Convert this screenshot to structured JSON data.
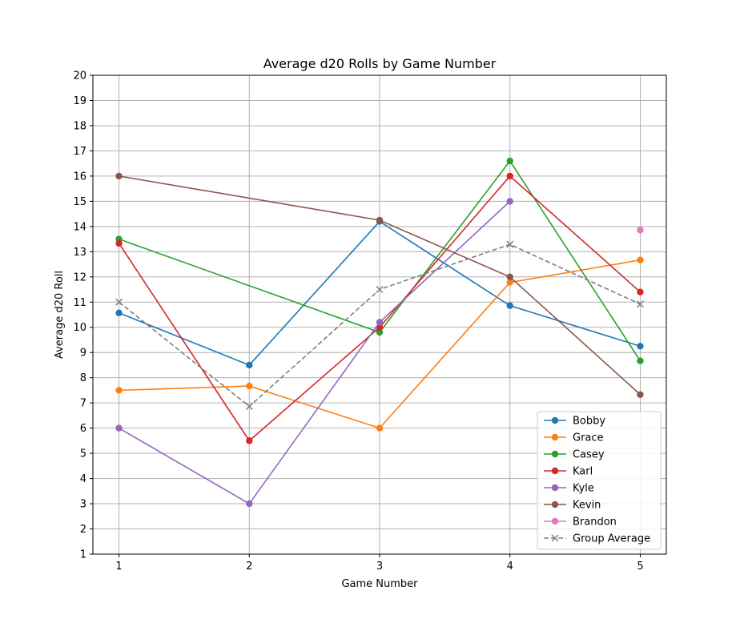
{
  "chart_data": {
    "type": "line",
    "title": "Average d20 Rolls by Game Number",
    "xlabel": "Game Number",
    "ylabel": "Average d20 Roll",
    "x": [
      1,
      2,
      3,
      4,
      5
    ],
    "xlim": [
      0.8,
      5.2
    ],
    "ylim": [
      1,
      20
    ],
    "xticks": [
      "1",
      "2",
      "3",
      "4",
      "5"
    ],
    "yticks": [
      "1",
      "2",
      "3",
      "4",
      "5",
      "6",
      "7",
      "8",
      "9",
      "10",
      "11",
      "12",
      "13",
      "14",
      "15",
      "16",
      "17",
      "18",
      "19",
      "20"
    ],
    "grid": true,
    "legend_position": "lower-right",
    "series": [
      {
        "name": "Bobby",
        "color": "#1f77b4",
        "marker": "circle",
        "dashed": false,
        "values": [
          10.57,
          8.5,
          14.2,
          10.86,
          9.25
        ]
      },
      {
        "name": "Grace",
        "color": "#ff7f0e",
        "marker": "circle",
        "dashed": false,
        "values": [
          7.5,
          7.67,
          6.0,
          11.78,
          12.67
        ]
      },
      {
        "name": "Casey",
        "color": "#2ca02c",
        "marker": "circle",
        "dashed": false,
        "values": [
          13.5,
          null,
          9.8,
          16.6,
          8.67
        ]
      },
      {
        "name": "Karl",
        "color": "#d62728",
        "marker": "circle",
        "dashed": false,
        "values": [
          13.33,
          5.5,
          10.0,
          16.0,
          11.4
        ]
      },
      {
        "name": "Kyle",
        "color": "#9467bd",
        "marker": "circle",
        "dashed": false,
        "values": [
          6.0,
          3.0,
          10.2,
          15.0,
          null
        ]
      },
      {
        "name": "Kevin",
        "color": "#8c564b",
        "marker": "circle",
        "dashed": false,
        "values": [
          16.0,
          null,
          14.25,
          12.0,
          7.33
        ]
      },
      {
        "name": "Brandon",
        "color": "#e377c2",
        "marker": "circle",
        "dashed": false,
        "values": [
          null,
          null,
          null,
          null,
          13.86
        ]
      },
      {
        "name": "Group Average",
        "color": "#7f7f7f",
        "marker": "x",
        "dashed": true,
        "values": [
          11.0,
          6.86,
          11.5,
          13.29,
          10.92
        ]
      }
    ]
  }
}
